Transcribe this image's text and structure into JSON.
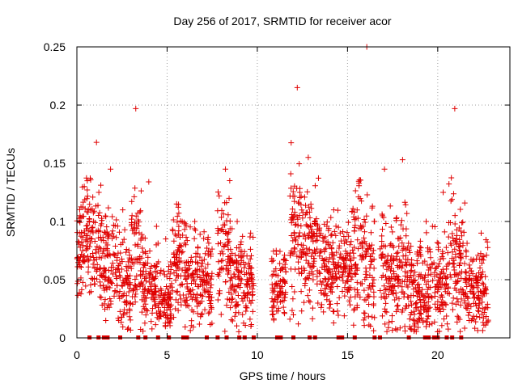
{
  "chart_data": {
    "type": "scatter",
    "title": "Day 256 of 2017, SRMTID for receiver acor",
    "xlabel": "GPS time / hours",
    "ylabel": "SRMTID / TECUs",
    "xlim": [
      0,
      24
    ],
    "ylim": [
      0,
      0.25
    ],
    "x_ticks": [
      0,
      5,
      10,
      15,
      20
    ],
    "y_ticks": [
      0,
      0.05,
      0.1,
      0.15,
      0.2,
      0.25
    ],
    "x_tick_labels": [
      "0",
      "5",
      "10",
      "15",
      "20"
    ],
    "y_tick_labels": [
      "0",
      "0.05",
      "0.1",
      "0.15",
      "0.2",
      "0.25"
    ],
    "grid": true,
    "marker": "+",
    "color": "#e00000",
    "series": [
      {
        "name": "SRMTID",
        "clusters": [
          {
            "x_start": 0.0,
            "x_end": 0.6,
            "center": 0.08,
            "spread": 0.02,
            "max": 0.13
          },
          {
            "x_start": 0.5,
            "x_end": 1.4,
            "center": 0.08,
            "spread": 0.025,
            "max": 0.168
          },
          {
            "x_start": 1.4,
            "x_end": 2.2,
            "center": 0.065,
            "spread": 0.025,
            "max": 0.145
          },
          {
            "x_start": 2.2,
            "x_end": 3.0,
            "center": 0.05,
            "spread": 0.02,
            "max": 0.11
          },
          {
            "x_start": 3.0,
            "x_end": 3.6,
            "center": 0.08,
            "spread": 0.03,
            "max": 0.197
          },
          {
            "x_start": 3.6,
            "x_end": 4.5,
            "center": 0.045,
            "spread": 0.02,
            "max": 0.134
          },
          {
            "x_start": 4.5,
            "x_end": 5.3,
            "center": 0.035,
            "spread": 0.015,
            "max": 0.085
          },
          {
            "x_start": 5.3,
            "x_end": 6.0,
            "center": 0.065,
            "spread": 0.025,
            "max": 0.115
          },
          {
            "x_start": 6.0,
            "x_end": 7.5,
            "center": 0.05,
            "spread": 0.02,
            "max": 0.1
          },
          {
            "x_start": 7.8,
            "x_end": 8.5,
            "center": 0.075,
            "spread": 0.025,
            "max": 0.145
          },
          {
            "x_start": 8.5,
            "x_end": 9.3,
            "center": 0.05,
            "spread": 0.02,
            "max": 0.1
          },
          {
            "x_start": 9.3,
            "x_end": 9.8,
            "center": 0.045,
            "spread": 0.02,
            "max": 0.09
          },
          {
            "x_start": 10.8,
            "x_end": 11.6,
            "center": 0.045,
            "spread": 0.015,
            "max": 0.075
          },
          {
            "x_start": 11.8,
            "x_end": 12.4,
            "center": 0.09,
            "spread": 0.035,
            "max": 0.215
          },
          {
            "x_start": 12.4,
            "x_end": 13.5,
            "center": 0.08,
            "spread": 0.025,
            "max": 0.155
          },
          {
            "x_start": 13.5,
            "x_end": 15.2,
            "center": 0.06,
            "spread": 0.02,
            "max": 0.11
          },
          {
            "x_start": 15.2,
            "x_end": 16.5,
            "center": 0.07,
            "spread": 0.03,
            "max": 0.25
          },
          {
            "x_start": 16.8,
            "x_end": 17.6,
            "center": 0.06,
            "spread": 0.025,
            "max": 0.145
          },
          {
            "x_start": 17.6,
            "x_end": 18.6,
            "center": 0.055,
            "spread": 0.025,
            "max": 0.153
          },
          {
            "x_start": 18.6,
            "x_end": 19.8,
            "center": 0.045,
            "spread": 0.02,
            "max": 0.1
          },
          {
            "x_start": 19.8,
            "x_end": 20.6,
            "center": 0.045,
            "spread": 0.02,
            "max": 0.125
          },
          {
            "x_start": 20.6,
            "x_end": 21.5,
            "center": 0.06,
            "spread": 0.03,
            "max": 0.197
          },
          {
            "x_start": 21.5,
            "x_end": 22.8,
            "center": 0.04,
            "spread": 0.018,
            "max": 0.09
          }
        ]
      }
    ],
    "zero_value_marks_x": [
      0.7,
      1.2,
      1.5,
      1.7,
      2.4,
      3.4,
      3.8,
      4.5,
      5.1,
      5.9,
      6.1,
      7.2,
      7.8,
      8.3,
      9.0,
      9.3,
      9.8,
      11.1,
      11.3,
      12.0,
      12.9,
      13.2,
      14.5,
      14.7,
      15.4,
      16.5,
      16.8,
      18.4,
      19.3,
      19.5,
      19.8,
      20.0,
      20.5,
      20.8,
      21.3
    ]
  }
}
